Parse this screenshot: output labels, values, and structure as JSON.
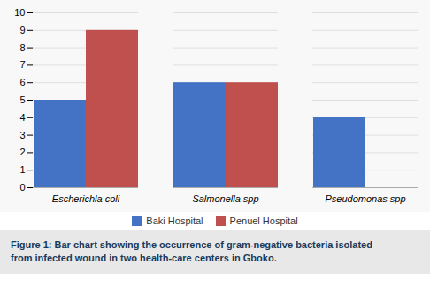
{
  "chart_data": {
    "type": "bar",
    "caption": "Figure 1: Bar chart showing the occurrence of gram-negative bacteria isolated\nfrom infected wound in two health-care centers in Gboko.",
    "categories": [
      "Escherichla coli",
      "Salmonella spp",
      "Pseudomonas spp"
    ],
    "series": [
      {
        "name": "Baki Hospital",
        "color": "#4472C4",
        "values": [
          5,
          6,
          4
        ]
      },
      {
        "name": "Penuel Hospital",
        "color": "#C0504D",
        "values": [
          9,
          6,
          0
        ]
      }
    ],
    "ylim": [
      0,
      10
    ],
    "yticks": [
      0,
      1,
      2,
      3,
      4,
      5,
      6,
      7,
      8,
      9,
      10
    ],
    "grid": true,
    "legend": "bottom"
  }
}
